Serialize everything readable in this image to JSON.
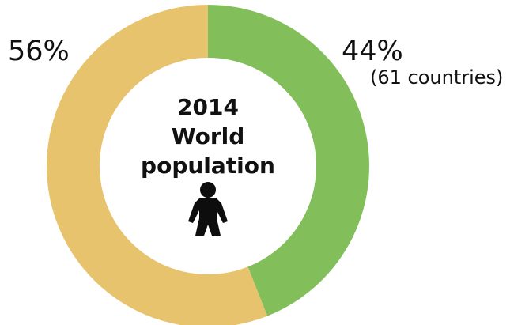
{
  "chart_data": {
    "type": "pie",
    "variant": "donut",
    "slices": [
      {
        "label": "44%",
        "value": 44,
        "sublabel": "(61 countries)",
        "color": "#82bf5a"
      },
      {
        "label": "56%",
        "value": 56,
        "sublabel": "",
        "color": "#e8c36d"
      }
    ],
    "center": {
      "lines": [
        "2014",
        "World",
        "population"
      ],
      "icon": "person-icon"
    }
  }
}
